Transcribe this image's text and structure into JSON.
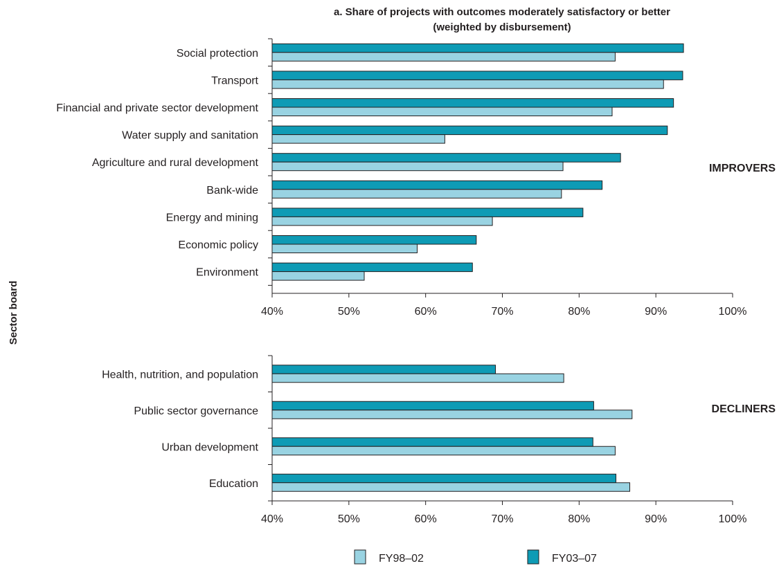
{
  "chart_data": {
    "type": "bar",
    "orientation": "horizontal",
    "title_line1": "a. Share of projects with outcomes moderately satisfactory or better",
    "title_line2": "(weighted by disbursement)",
    "ylabel": "Sector board",
    "xlim": [
      40,
      100
    ],
    "xticks": [
      "40%",
      "50%",
      "60%",
      "70%",
      "80%",
      "90%",
      "100%"
    ],
    "colors": {
      "FY98–02": "#99d3e2",
      "FY03–07": "#0e9bb5"
    },
    "legend": [
      "FY98–02",
      "FY03–07"
    ],
    "panels": [
      {
        "group_label": "IMPROVERS",
        "categories": [
          "Social protection",
          "Transport",
          "Financial and private sector development",
          "Water supply and sanitation",
          "Agriculture and rural development",
          "Bank-wide ",
          "Energy and mining",
          "Economic policy",
          "Environment"
        ],
        "series": [
          {
            "name": "FY03–07",
            "values": [
              93.6,
              93.5,
              92.3,
              91.5,
              85.4,
              83.0,
              80.5,
              66.6,
              66.1
            ]
          },
          {
            "name": "FY98–02",
            "values": [
              84.7,
              91.0,
              84.3,
              62.5,
              77.9,
              77.7,
              68.7,
              58.9,
              52.0
            ]
          }
        ]
      },
      {
        "group_label": "DECLINERS",
        "categories": [
          "Health, nutrition, and population",
          "Public sector governance",
          "Urban development",
          "Education"
        ],
        "series": [
          {
            "name": "FY03–07",
            "values": [
              69.1,
              81.9,
              81.8,
              84.8
            ]
          },
          {
            "name": "FY98–02",
            "values": [
              78.0,
              86.9,
              84.7,
              86.6
            ]
          }
        ]
      }
    ]
  }
}
